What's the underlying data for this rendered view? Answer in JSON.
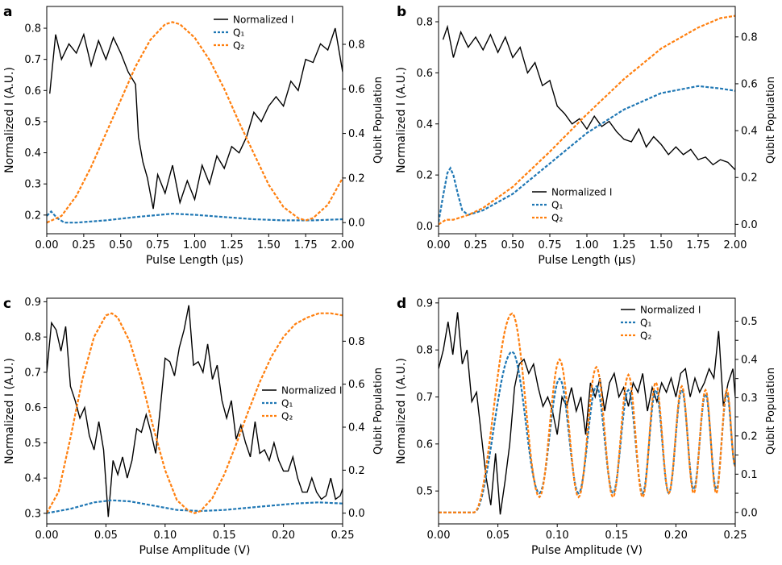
{
  "colors": {
    "normalized": "#000000",
    "q1": "#1f77b4",
    "q2": "#ff7f0e"
  },
  "chart_data": [
    {
      "panel_label": "a",
      "type": "line",
      "xlabel": "Pulse Length (μs)",
      "ylabel_left": "Normalized I (A.U.)",
      "ylabel_right": "Qubit Population",
      "xlim": [
        0,
        2.0
      ],
      "ylim_left": [
        0.14,
        0.87
      ],
      "ylim_right": [
        -0.05,
        0.97
      ],
      "xticks": [
        0.0,
        0.25,
        0.5,
        0.75,
        1.0,
        1.25,
        1.5,
        1.75,
        2.0
      ],
      "xtick_labels": [
        "0.00",
        "0.25",
        "0.50",
        "0.75",
        "1.00",
        "1.25",
        "1.50",
        "1.75",
        "2.00"
      ],
      "yticks_left": [
        0.2,
        0.3,
        0.4,
        0.5,
        0.6,
        0.7,
        0.8
      ],
      "ytick_labels_left": [
        "0.2",
        "0.3",
        "0.4",
        "0.5",
        "0.6",
        "0.7",
        "0.8"
      ],
      "yticks_right": [
        0.0,
        0.2,
        0.4,
        0.6,
        0.8
      ],
      "ytick_labels_right": [
        "0.0",
        "0.2",
        "0.4",
        "0.6",
        "0.8"
      ],
      "legend": {
        "position": "top-center",
        "entries": [
          "Normalized I",
          "Q₁",
          "Q₂"
        ]
      },
      "series": [
        {
          "name": "Normalized I",
          "axis": "left",
          "style": "solid",
          "color": "#000000",
          "x": [
            0.02,
            0.06,
            0.1,
            0.15,
            0.2,
            0.25,
            0.3,
            0.35,
            0.4,
            0.45,
            0.5,
            0.55,
            0.6,
            0.62,
            0.65,
            0.68,
            0.7,
            0.72,
            0.75,
            0.8,
            0.85,
            0.9,
            0.95,
            1.0,
            1.05,
            1.1,
            1.15,
            1.2,
            1.25,
            1.3,
            1.35,
            1.4,
            1.45,
            1.5,
            1.55,
            1.6,
            1.65,
            1.7,
            1.75,
            1.8,
            1.85,
            1.9,
            1.95,
            2.0
          ],
          "y": [
            0.59,
            0.78,
            0.7,
            0.75,
            0.72,
            0.78,
            0.68,
            0.76,
            0.7,
            0.77,
            0.72,
            0.66,
            0.62,
            0.45,
            0.37,
            0.32,
            0.27,
            0.22,
            0.33,
            0.27,
            0.36,
            0.24,
            0.31,
            0.25,
            0.36,
            0.3,
            0.39,
            0.35,
            0.42,
            0.4,
            0.45,
            0.53,
            0.5,
            0.55,
            0.58,
            0.55,
            0.63,
            0.6,
            0.7,
            0.69,
            0.75,
            0.73,
            0.8,
            0.66
          ]
        },
        {
          "name": "Q₁",
          "axis": "right",
          "style": "dashed",
          "color": "#1f77b4",
          "x": [
            0,
            0.03,
            0.07,
            0.12,
            0.2,
            0.4,
            0.6,
            0.85,
            1.0,
            1.2,
            1.4,
            1.6,
            1.8,
            2.0
          ],
          "y": [
            0.03,
            0.05,
            0.02,
            0.0,
            0.0,
            0.01,
            0.025,
            0.04,
            0.035,
            0.025,
            0.015,
            0.01,
            0.01,
            0.015
          ]
        },
        {
          "name": "Q₂",
          "axis": "right",
          "style": "dashed",
          "color": "#ff7f0e",
          "x": [
            0,
            0.1,
            0.2,
            0.3,
            0.4,
            0.5,
            0.6,
            0.7,
            0.8,
            0.85,
            0.9,
            1.0,
            1.1,
            1.2,
            1.3,
            1.4,
            1.5,
            1.6,
            1.7,
            1.75,
            1.8,
            1.9,
            2.0
          ],
          "y": [
            0.0,
            0.03,
            0.12,
            0.25,
            0.4,
            0.55,
            0.7,
            0.82,
            0.89,
            0.9,
            0.89,
            0.83,
            0.73,
            0.6,
            0.45,
            0.31,
            0.17,
            0.07,
            0.02,
            0.01,
            0.02,
            0.08,
            0.2
          ]
        }
      ]
    },
    {
      "panel_label": "b",
      "type": "line",
      "xlabel": "Pulse Length (μs)",
      "ylabel_left": "Normalized I (A.U.)",
      "ylabel_right": "Qubit Population",
      "xlim": [
        0,
        2.0
      ],
      "ylim_left": [
        -0.03,
        0.86
      ],
      "ylim_right": [
        -0.04,
        0.93
      ],
      "xticks": [
        0.0,
        0.25,
        0.5,
        0.75,
        1.0,
        1.25,
        1.5,
        1.75,
        2.0
      ],
      "xtick_labels": [
        "0.00",
        "0.25",
        "0.50",
        "0.75",
        "1.00",
        "1.25",
        "1.50",
        "1.75",
        "2.00"
      ],
      "yticks_left": [
        0.0,
        0.2,
        0.4,
        0.6,
        0.8
      ],
      "ytick_labels_left": [
        "0.0",
        "0.2",
        "0.4",
        "0.6",
        "0.8"
      ],
      "yticks_right": [
        0.0,
        0.2,
        0.4,
        0.6,
        0.8
      ],
      "ytick_labels_right": [
        "0.0",
        "0.2",
        "0.4",
        "0.6",
        "0.8"
      ],
      "legend": {
        "position": "center",
        "entries": [
          "Normalized I",
          "Q₁",
          "Q₂"
        ]
      },
      "series": [
        {
          "name": "Normalized I",
          "axis": "left",
          "style": "solid",
          "color": "#000000",
          "x": [
            0.03,
            0.06,
            0.1,
            0.15,
            0.2,
            0.25,
            0.3,
            0.35,
            0.4,
            0.45,
            0.5,
            0.55,
            0.6,
            0.65,
            0.7,
            0.75,
            0.8,
            0.85,
            0.9,
            0.95,
            1.0,
            1.05,
            1.1,
            1.15,
            1.2,
            1.25,
            1.3,
            1.35,
            1.4,
            1.45,
            1.5,
            1.55,
            1.6,
            1.65,
            1.7,
            1.75,
            1.8,
            1.85,
            1.9,
            1.95,
            2.0
          ],
          "y": [
            0.73,
            0.78,
            0.66,
            0.76,
            0.7,
            0.74,
            0.69,
            0.75,
            0.68,
            0.74,
            0.66,
            0.7,
            0.6,
            0.64,
            0.55,
            0.57,
            0.47,
            0.44,
            0.4,
            0.42,
            0.38,
            0.43,
            0.39,
            0.41,
            0.37,
            0.34,
            0.33,
            0.38,
            0.31,
            0.35,
            0.32,
            0.28,
            0.31,
            0.28,
            0.3,
            0.26,
            0.27,
            0.24,
            0.26,
            0.25,
            0.22
          ]
        },
        {
          "name": "Q₁",
          "axis": "right",
          "style": "dashed",
          "color": "#1f77b4",
          "x": [
            0,
            0.03,
            0.06,
            0.08,
            0.1,
            0.13,
            0.16,
            0.2,
            0.3,
            0.5,
            0.75,
            1.0,
            1.25,
            1.5,
            1.75,
            1.9,
            2.0
          ],
          "y": [
            0.01,
            0.12,
            0.22,
            0.24,
            0.21,
            0.13,
            0.06,
            0.04,
            0.06,
            0.13,
            0.26,
            0.39,
            0.49,
            0.56,
            0.59,
            0.58,
            0.57
          ]
        },
        {
          "name": "Q₂",
          "axis": "right",
          "style": "dashed",
          "color": "#ff7f0e",
          "x": [
            0,
            0.05,
            0.1,
            0.2,
            0.3,
            0.5,
            0.75,
            1.0,
            1.25,
            1.5,
            1.75,
            1.9,
            2.0
          ],
          "y": [
            0.0,
            0.02,
            0.02,
            0.04,
            0.07,
            0.16,
            0.31,
            0.47,
            0.62,
            0.75,
            0.84,
            0.88,
            0.89
          ]
        }
      ]
    },
    {
      "panel_label": "c",
      "type": "line",
      "xlabel": "Pulse Amplitude (V)",
      "ylabel_left": "Normalized I (A.U.)",
      "ylabel_right": "Qubit Population",
      "xlim": [
        0,
        0.25
      ],
      "ylim_left": [
        0.27,
        0.91
      ],
      "ylim_right": [
        -0.05,
        1.0
      ],
      "xticks": [
        0.0,
        0.05,
        0.1,
        0.15,
        0.2,
        0.25
      ],
      "xtick_labels": [
        "0.00",
        "0.05",
        "0.10",
        "0.15",
        "0.20",
        "0.25"
      ],
      "yticks_left": [
        0.3,
        0.4,
        0.5,
        0.6,
        0.7,
        0.8,
        0.9
      ],
      "ytick_labels_left": [
        "0.3",
        "0.4",
        "0.5",
        "0.6",
        "0.7",
        "0.8",
        "0.9"
      ],
      "yticks_right": [
        0.0,
        0.2,
        0.4,
        0.6,
        0.8
      ],
      "ytick_labels_right": [
        "0.0",
        "0.2",
        "0.4",
        "0.6",
        "0.8"
      ],
      "legend": {
        "position": "center-right",
        "entries": [
          "Normalized I",
          "Q₁",
          "Q₂"
        ]
      },
      "series": [
        {
          "name": "Normalized I",
          "axis": "left",
          "style": "solid",
          "color": "#000000",
          "x": [
            0.0,
            0.004,
            0.008,
            0.012,
            0.016,
            0.02,
            0.024,
            0.028,
            0.032,
            0.036,
            0.04,
            0.044,
            0.048,
            0.052,
            0.056,
            0.06,
            0.064,
            0.068,
            0.072,
            0.076,
            0.08,
            0.084,
            0.088,
            0.092,
            0.096,
            0.1,
            0.104,
            0.108,
            0.112,
            0.116,
            0.12,
            0.124,
            0.128,
            0.132,
            0.136,
            0.14,
            0.144,
            0.148,
            0.152,
            0.156,
            0.16,
            0.164,
            0.168,
            0.172,
            0.176,
            0.18,
            0.184,
            0.188,
            0.192,
            0.196,
            0.2,
            0.204,
            0.208,
            0.212,
            0.216,
            0.22,
            0.224,
            0.228,
            0.232,
            0.236,
            0.24,
            0.244,
            0.248,
            0.25
          ],
          "y": [
            0.7,
            0.84,
            0.82,
            0.76,
            0.83,
            0.66,
            0.62,
            0.57,
            0.6,
            0.52,
            0.48,
            0.56,
            0.48,
            0.29,
            0.45,
            0.41,
            0.46,
            0.4,
            0.45,
            0.54,
            0.53,
            0.58,
            0.53,
            0.47,
            0.6,
            0.74,
            0.73,
            0.69,
            0.77,
            0.82,
            0.89,
            0.72,
            0.73,
            0.7,
            0.78,
            0.68,
            0.72,
            0.62,
            0.57,
            0.62,
            0.51,
            0.55,
            0.5,
            0.46,
            0.56,
            0.47,
            0.48,
            0.45,
            0.5,
            0.45,
            0.42,
            0.42,
            0.46,
            0.4,
            0.36,
            0.36,
            0.4,
            0.36,
            0.34,
            0.35,
            0.4,
            0.34,
            0.35,
            0.37
          ]
        },
        {
          "name": "Q₁",
          "axis": "right",
          "style": "dashed",
          "color": "#1f77b4",
          "x": [
            0,
            0.02,
            0.04,
            0.055,
            0.07,
            0.09,
            0.11,
            0.13,
            0.15,
            0.17,
            0.19,
            0.21,
            0.23,
            0.25
          ],
          "y": [
            0.0,
            0.02,
            0.05,
            0.06,
            0.055,
            0.035,
            0.015,
            0.01,
            0.015,
            0.025,
            0.035,
            0.045,
            0.05,
            0.045
          ]
        },
        {
          "name": "Q₂",
          "axis": "right",
          "style": "dashed",
          "color": "#ff7f0e",
          "x": [
            0,
            0.01,
            0.02,
            0.03,
            0.04,
            0.05,
            0.055,
            0.06,
            0.07,
            0.08,
            0.09,
            0.1,
            0.11,
            0.12,
            0.125,
            0.13,
            0.14,
            0.15,
            0.16,
            0.17,
            0.18,
            0.19,
            0.2,
            0.21,
            0.22,
            0.23,
            0.24,
            0.25
          ],
          "y": [
            0.0,
            0.1,
            0.35,
            0.62,
            0.82,
            0.92,
            0.93,
            0.91,
            0.8,
            0.62,
            0.4,
            0.2,
            0.06,
            0.01,
            0.0,
            0.01,
            0.07,
            0.18,
            0.32,
            0.47,
            0.61,
            0.73,
            0.82,
            0.88,
            0.91,
            0.93,
            0.93,
            0.92
          ]
        }
      ]
    },
    {
      "panel_label": "d",
      "type": "line",
      "xlabel": "Pulse Amplitude (V)",
      "ylabel_left": "Normalized I (A.U.)",
      "ylabel_right": "Qubit Population",
      "xlim": [
        0,
        0.25
      ],
      "ylim_left": [
        0.43,
        0.91
      ],
      "ylim_right": [
        -0.03,
        0.56
      ],
      "xticks": [
        0.0,
        0.05,
        0.1,
        0.15,
        0.2,
        0.25
      ],
      "xtick_labels": [
        "0.00",
        "0.05",
        "0.10",
        "0.15",
        "0.20",
        "0.25"
      ],
      "yticks_left": [
        0.5,
        0.6,
        0.7,
        0.8,
        0.9
      ],
      "ytick_labels_left": [
        "0.5",
        "0.6",
        "0.7",
        "0.8",
        "0.9"
      ],
      "yticks_right": [
        0.0,
        0.05,
        0.1,
        0.15,
        0.2,
        0.25,
        0.3,
        0.35,
        0.4,
        0.45,
        0.5
      ],
      "ytick_labels_right": [
        "0.0",
        "0.1",
        "0.1",
        "0.2",
        "0.2",
        "0.3",
        "0.3",
        "0.4",
        "0.4",
        "0.5",
        "0.5"
      ],
      "ytick_labels_right_display": [
        "0.0",
        "",
        "0.1",
        "",
        "0.2",
        "",
        "0.3",
        "",
        "0.4",
        "",
        "0.5"
      ],
      "legend": {
        "position": "top-right",
        "entries": [
          "Normalized I",
          "Q₁",
          "Q₂"
        ]
      },
      "series": [
        {
          "name": "Normalized I",
          "axis": "left",
          "style": "solid",
          "color": "#000000",
          "x": [
            0.0,
            0.004,
            0.008,
            0.012,
            0.016,
            0.02,
            0.024,
            0.028,
            0.032,
            0.036,
            0.04,
            0.044,
            0.048,
            0.052,
            0.056,
            0.06,
            0.064,
            0.068,
            0.072,
            0.076,
            0.08,
            0.084,
            0.088,
            0.092,
            0.096,
            0.1,
            0.104,
            0.108,
            0.112,
            0.116,
            0.12,
            0.124,
            0.128,
            0.132,
            0.136,
            0.14,
            0.144,
            0.148,
            0.152,
            0.156,
            0.16,
            0.164,
            0.168,
            0.172,
            0.176,
            0.18,
            0.184,
            0.188,
            0.192,
            0.196,
            0.2,
            0.204,
            0.208,
            0.212,
            0.216,
            0.22,
            0.224,
            0.228,
            0.232,
            0.236,
            0.24,
            0.244,
            0.248,
            0.25
          ],
          "y": [
            0.76,
            0.8,
            0.86,
            0.79,
            0.88,
            0.77,
            0.8,
            0.69,
            0.71,
            0.62,
            0.53,
            0.47,
            0.58,
            0.45,
            0.52,
            0.6,
            0.72,
            0.77,
            0.78,
            0.75,
            0.77,
            0.72,
            0.68,
            0.7,
            0.67,
            0.62,
            0.7,
            0.68,
            0.72,
            0.67,
            0.7,
            0.62,
            0.73,
            0.7,
            0.74,
            0.67,
            0.73,
            0.75,
            0.7,
            0.72,
            0.68,
            0.73,
            0.71,
            0.75,
            0.67,
            0.72,
            0.69,
            0.73,
            0.71,
            0.74,
            0.7,
            0.75,
            0.76,
            0.7,
            0.74,
            0.71,
            0.73,
            0.76,
            0.74,
            0.84,
            0.68,
            0.73,
            0.76,
            0.7
          ]
        }
      ],
      "oscillation_peaks": {
        "x": [
          0.062,
          0.102,
          0.133,
          0.16,
          0.183,
          0.205,
          0.225,
          0.243
        ],
        "q1": [
          0.42,
          0.35,
          0.33,
          0.32,
          0.32,
          0.32,
          0.31,
          0.31
        ],
        "q2": [
          0.52,
          0.4,
          0.38,
          0.36,
          0.34,
          0.33,
          0.32,
          0.32
        ],
        "troughs_x": [
          0.085,
          0.118,
          0.147,
          0.172,
          0.194,
          0.215,
          0.234
        ],
        "troughs_q1": [
          0.05,
          0.05,
          0.05,
          0.05,
          0.05,
          0.06,
          0.06
        ],
        "troughs_q2": [
          0.04,
          0.04,
          0.04,
          0.04,
          0.05,
          0.05,
          0.05
        ]
      }
    }
  ]
}
